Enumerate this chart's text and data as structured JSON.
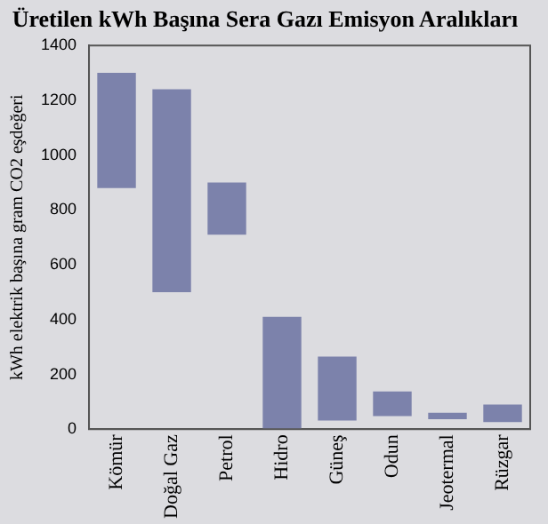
{
  "chart_data": {
    "type": "bar",
    "title": "Üretilen kWh Başına Sera Gazı Emisyon Aralıkları",
    "ylabel": "kWh elektrik başına gram CO2 eşdeğeri",
    "categories": [
      "Kömür",
      "Doğal Gaz",
      "Petrol",
      "Hidro",
      "Güneş",
      "Odun",
      "Jeotermal",
      "Rüzgar"
    ],
    "base": [
      880,
      500,
      710,
      0,
      32,
      48,
      37,
      26
    ],
    "values": [
      420,
      740,
      190,
      410,
      233,
      90,
      23,
      64
    ],
    "color": "#7c82ab",
    "ylim": [
      0,
      1400
    ],
    "yticks": [
      0,
      200,
      400,
      600,
      800,
      1000,
      1200,
      1400
    ],
    "grid": false,
    "legend": false
  }
}
